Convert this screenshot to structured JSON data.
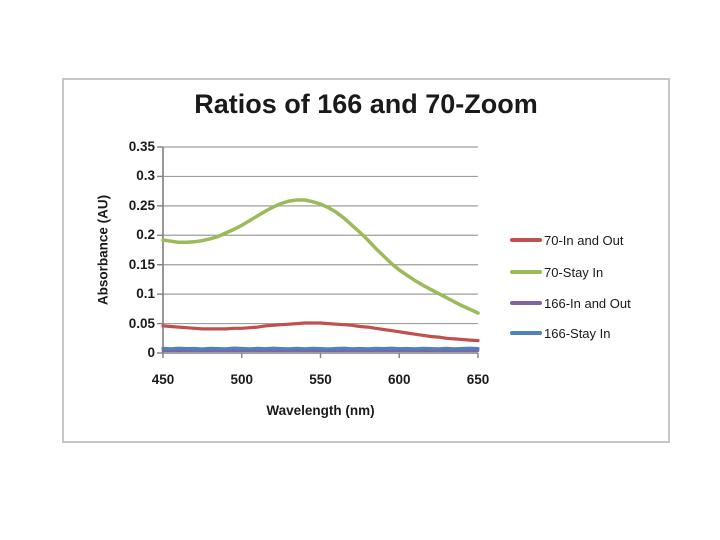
{
  "chart": {
    "title": "Ratios of 166 and 70-Zoom",
    "x_axis_title": "Wavelength (nm)",
    "y_axis_title": "Absorbance (AU)"
  },
  "colors": {
    "frame_border": "#c6c6c6",
    "gridline": "#9e9e9e",
    "axis_line": "#7f7f7f",
    "text": "#1a1a1a",
    "series_red": "#C0504D",
    "series_green": "#9BBB59",
    "series_purple": "#8064A2",
    "series_blue": "#4F81BD"
  },
  "chart_data": {
    "type": "line",
    "title": "Ratios of 166 and 70-Zoom",
    "xlabel": "Wavelength (nm)",
    "ylabel": "Absorbance (AU)",
    "xlim": [
      450,
      650
    ],
    "ylim": [
      0,
      0.35
    ],
    "x_ticks": [
      "450",
      "500",
      "550",
      "600",
      "650"
    ],
    "y_ticks": [
      "0",
      "0.05",
      "0.1",
      "0.15",
      "0.2",
      "0.25",
      "0.3",
      "0.35"
    ],
    "grid": "horizontal",
    "legend_position": "right",
    "x": [
      450,
      455,
      460,
      465,
      470,
      475,
      480,
      485,
      490,
      495,
      500,
      505,
      510,
      515,
      520,
      525,
      530,
      535,
      540,
      545,
      550,
      555,
      560,
      565,
      570,
      575,
      580,
      585,
      590,
      595,
      600,
      605,
      610,
      615,
      620,
      625,
      630,
      635,
      640,
      645,
      650
    ],
    "series": [
      {
        "name": "70-In and Out",
        "color": "#C0504D",
        "values": [
          0.046,
          0.045,
          0.044,
          0.043,
          0.042,
          0.041,
          0.041,
          0.041,
          0.041,
          0.042,
          0.042,
          0.043,
          0.044,
          0.046,
          0.047,
          0.048,
          0.049,
          0.05,
          0.051,
          0.051,
          0.051,
          0.05,
          0.049,
          0.048,
          0.047,
          0.045,
          0.044,
          0.042,
          0.04,
          0.038,
          0.036,
          0.034,
          0.032,
          0.03,
          0.028,
          0.027,
          0.025,
          0.024,
          0.023,
          0.022,
          0.021
        ]
      },
      {
        "name": "70-Stay In",
        "color": "#9BBB59",
        "values": [
          0.192,
          0.19,
          0.188,
          0.188,
          0.189,
          0.191,
          0.194,
          0.198,
          0.204,
          0.21,
          0.217,
          0.225,
          0.233,
          0.241,
          0.248,
          0.254,
          0.258,
          0.26,
          0.26,
          0.257,
          0.253,
          0.247,
          0.239,
          0.229,
          0.217,
          0.205,
          0.192,
          0.178,
          0.165,
          0.152,
          0.141,
          0.132,
          0.123,
          0.115,
          0.108,
          0.101,
          0.094,
          0.087,
          0.08,
          0.074,
          0.068
        ]
      },
      {
        "name": "166-In and Out",
        "color": "#8064A2",
        "values": [
          0.004,
          0.004,
          0.004,
          0.004,
          0.004,
          0.004,
          0.004,
          0.004,
          0.004,
          0.004,
          0.004,
          0.004,
          0.004,
          0.004,
          0.004,
          0.004,
          0.004,
          0.004,
          0.004,
          0.004,
          0.004,
          0.004,
          0.004,
          0.004,
          0.004,
          0.004,
          0.004,
          0.004,
          0.004,
          0.004,
          0.004,
          0.004,
          0.004,
          0.004,
          0.004,
          0.004,
          0.004,
          0.004,
          0.004,
          0.004,
          0.004
        ]
      },
      {
        "name": "166-Stay In",
        "color": "#4F81BD",
        "values": [
          0.0078,
          0.007,
          0.0082,
          0.0074,
          0.0077,
          0.0068,
          0.008,
          0.0075,
          0.0071,
          0.0083,
          0.0076,
          0.0069,
          0.0079,
          0.0073,
          0.0081,
          0.0074,
          0.007,
          0.0078,
          0.0072,
          0.008,
          0.0075,
          0.0068,
          0.0077,
          0.0082,
          0.0071,
          0.0076,
          0.0069,
          0.0079,
          0.0074,
          0.0081,
          0.0073,
          0.0077,
          0.007,
          0.008,
          0.0075,
          0.0072,
          0.0078,
          0.0069,
          0.0076,
          0.0081,
          0.0074
        ]
      }
    ]
  }
}
